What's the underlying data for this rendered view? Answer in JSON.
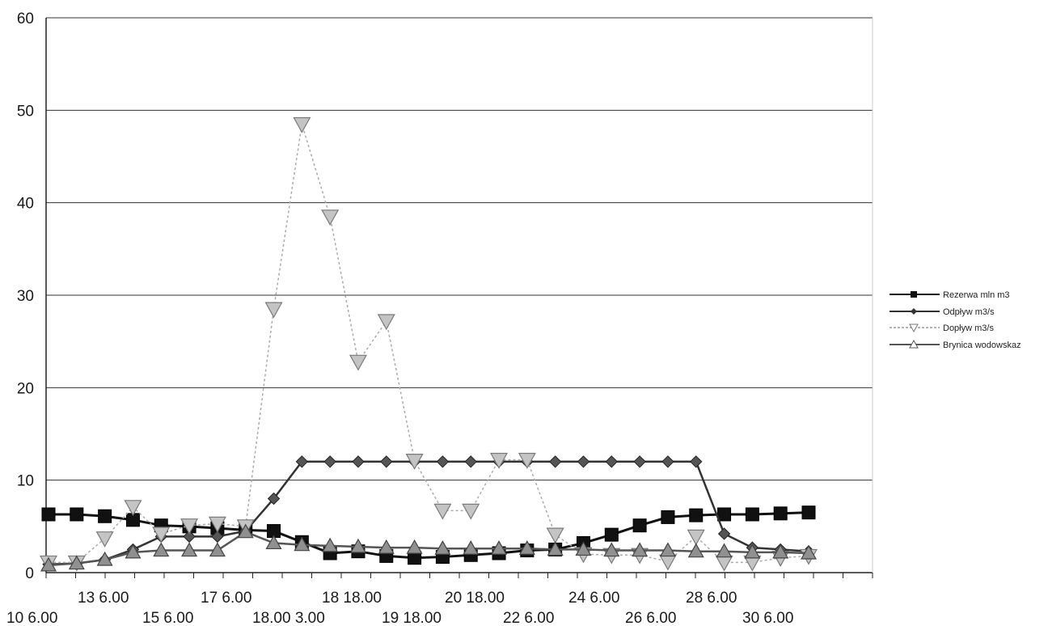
{
  "chart_data": {
    "type": "line",
    "ylim": [
      0,
      60
    ],
    "yticks": [
      0,
      10,
      20,
      30,
      40,
      50,
      60
    ],
    "grid": "horizontal",
    "legend_position": "right",
    "x_tick_labels_upper": [
      "13 6.00",
      "17 6.00",
      "18 18.00",
      "20 18.00",
      "24 6.00",
      "28  6.00"
    ],
    "x_tick_labels_lower": [
      "10 6.00",
      "15 6.00",
      "18.00 3.00",
      "19 18.00",
      "22 6.00",
      "26  6.00",
      "30  6.00"
    ],
    "series": [
      {
        "name": "Rezerwa mln m3",
        "color": "#111111",
        "marker": "square",
        "values": [
          6.3,
          6.3,
          6.1,
          5.7,
          5.1,
          5.0,
          4.8,
          4.6,
          4.5,
          3.3,
          2.1,
          2.3,
          1.8,
          1.6,
          1.7,
          1.9,
          2.1,
          2.4,
          2.5,
          3.2,
          4.1,
          5.1,
          6.0,
          6.2,
          6.3,
          6.3,
          6.4,
          6.5
        ]
      },
      {
        "name": "Odpływ m3/s",
        "color": "#333333",
        "marker": "diamond",
        "values": [
          0.9,
          1.0,
          1.4,
          2.5,
          3.9,
          3.9,
          3.9,
          4.5,
          8.0,
          12.0,
          12.0,
          12.0,
          12.0,
          12.0,
          12.0,
          12.0,
          12.0,
          12.0,
          12.0,
          12.0,
          12.0,
          12.0,
          12.0,
          12.0,
          4.2,
          2.7,
          2.5,
          2.3
        ]
      },
      {
        "name": "Dopływ m3/s",
        "color": "#aaaaaa",
        "marker": "triangle-down",
        "values": [
          1.1,
          1.1,
          3.7,
          7.1,
          4.2,
          5.1,
          5.3,
          5.0,
          28.5,
          48.5,
          38.5,
          22.8,
          27.2,
          12.1,
          6.7,
          6.7,
          12.2,
          12.2,
          4.1,
          2.0,
          1.9,
          1.9,
          1.2,
          3.9,
          1.1,
          1.1,
          1.6,
          1.8
        ]
      },
      {
        "name": "Brynica wodowskaz",
        "color": "#555555",
        "marker": "triangle-up",
        "values": [
          0.8,
          1.0,
          1.4,
          2.2,
          2.4,
          2.4,
          2.4,
          4.4,
          3.2,
          3.0,
          2.9,
          2.8,
          2.7,
          2.7,
          2.6,
          2.6,
          2.6,
          2.6,
          2.5,
          2.5,
          2.4,
          2.4,
          2.4,
          2.3,
          2.3,
          2.2,
          2.2,
          2.1
        ]
      }
    ]
  }
}
